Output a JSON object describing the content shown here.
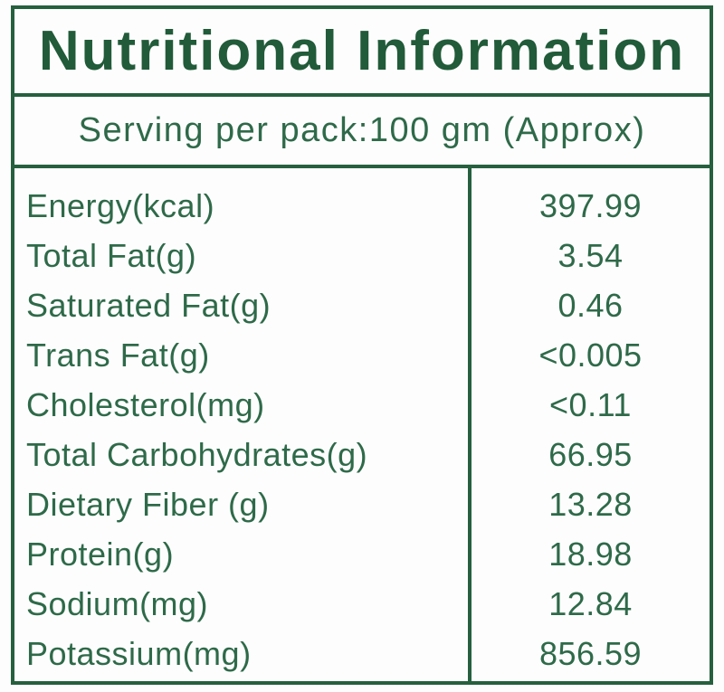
{
  "title": "Nutritional Information",
  "serving_info": "Serving per pack:100 gm (Approx)",
  "colors": {
    "border": "#26603f",
    "title_text": "#215b39",
    "body_text": "#2e6a49",
    "background": "#fdfdfd"
  },
  "table": {
    "rows": [
      {
        "label": "Energy(kcal)",
        "value": "397.99"
      },
      {
        "label": "Total Fat(g)",
        "value": "3.54"
      },
      {
        "label": "Saturated Fat(g)",
        "value": "0.46"
      },
      {
        "label": "Trans Fat(g)",
        "value": "<0.005"
      },
      {
        "label": "Cholesterol(mg)",
        "value": "<0.11"
      },
      {
        "label": "Total Carbohydrates(g)",
        "value": "66.95"
      },
      {
        "label": "Dietary Fiber (g)",
        "value": "13.28"
      },
      {
        "label": "Protein(g)",
        "value": "18.98"
      },
      {
        "label": "Sodium(mg)",
        "value": "12.84"
      },
      {
        "label": "Potassium(mg)",
        "value": "856.59"
      }
    ]
  }
}
